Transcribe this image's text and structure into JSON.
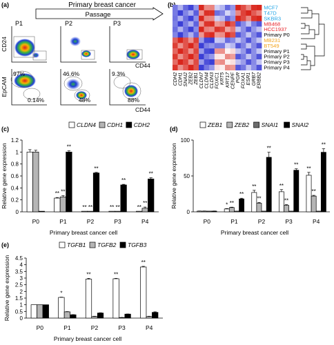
{
  "panel_a": {
    "label": "(a)",
    "title": "Primary breast cancer",
    "arrow_label": "Passage",
    "plot_titles": [
      "P1",
      "P2",
      "P3"
    ],
    "y_labels": [
      "CD24",
      "EpCAM"
    ],
    "x_label": "CD44",
    "row2_percent_upper": [
      "97%",
      "46.6%",
      "9.3%"
    ],
    "row2_percent_lower": [
      "0.14%",
      "48%",
      "88%"
    ]
  },
  "panel_b": {
    "label": "(b)",
    "rows": [
      "MCF7",
      "T47D",
      "SKBR3",
      "MB468",
      "HCC1937",
      "Primary P0",
      "MB231",
      "BT549",
      "Primary P1",
      "Primary P2",
      "Primary P3",
      "Primary P4"
    ],
    "row_colors": [
      "#1ea3e6",
      "#1ea3e6",
      "#1ea3e6",
      "#e8242a",
      "#e8242a",
      "#000000",
      "#f2a31c",
      "#f2a31c",
      "#000000",
      "#000000",
      "#000000",
      "#000000"
    ],
    "columns": [
      "CDH2",
      "CDH1",
      "SNAI2",
      "ZEB2",
      "ZEB1",
      "CLDN7",
      "CLDN4",
      "CLDN3",
      "FOXC1",
      "KRT5",
      "KRT17",
      "CENPF",
      "PGR",
      "FOXA1",
      "ESR1",
      "GRB7",
      "ERBB2"
    ],
    "colors": {
      "high": "#d9261c",
      "mid": "#ffffff",
      "low": "#3b3fd6"
    }
  },
  "chart_data": [
    {
      "id": "c",
      "type": "bar",
      "label": "(c)",
      "categories": [
        "P0",
        "P1",
        "P2",
        "P3",
        "P4"
      ],
      "series": [
        {
          "name": "CLDN4",
          "values": [
            1.0,
            0.23,
            0.01,
            0.01,
            0.01
          ],
          "errors": [
            0.04,
            0.01,
            0.0,
            0.0,
            0.0
          ],
          "color": "#ffffff",
          "sig": [
            "",
            "**",
            "**",
            "**",
            "**"
          ]
        },
        {
          "name": "CDH1",
          "values": [
            1.0,
            0.25,
            0.01,
            0.01,
            0.06
          ],
          "errors": [
            0.03,
            0.02,
            0.0,
            0.0,
            0.02
          ],
          "color": "#b5b5b5",
          "sig": [
            "",
            "**",
            "**",
            "**",
            "**"
          ]
        },
        {
          "name": "CDH2",
          "values": [
            0.01,
            1.0,
            0.65,
            0.45,
            0.55
          ],
          "errors": [
            0.0,
            0.02,
            0.01,
            0.01,
            0.02
          ],
          "color": "#000000",
          "sig": [
            "",
            "**",
            "**",
            "**",
            "**"
          ]
        }
      ],
      "xlabel": "Primary breast cancer cell",
      "ylabel": "Relative gene expression",
      "ylim": [
        0,
        1.2
      ],
      "yticks": [
        "0",
        "0.2",
        "0.4",
        "0.6",
        "0.8",
        "1",
        "1.2"
      ],
      "legend": "top"
    },
    {
      "id": "d",
      "type": "bar",
      "label": "(d)",
      "categories": [
        "P0",
        "P1",
        "P2",
        "P3",
        "P4"
      ],
      "series": [
        {
          "name": "ZEB1",
          "values": [
            1,
            4,
            27,
            28,
            51
          ],
          "errors": [
            0.2,
            0.5,
            3,
            3,
            4
          ],
          "color": "#ffffff",
          "sig": [
            "",
            "*",
            "**",
            "**",
            "**"
          ]
        },
        {
          "name": "ZEB2",
          "values": [
            1,
            6,
            12,
            9,
            22
          ],
          "errors": [
            0.2,
            0.5,
            1,
            1,
            1
          ],
          "color": "#b5b5b5",
          "sig": [
            "",
            "**",
            "**",
            "**",
            "**"
          ]
        },
        {
          "name": "SNAI1",
          "values": [
            1,
            1,
            1,
            1,
            1
          ],
          "errors": [
            0,
            0,
            0,
            0,
            0
          ],
          "color": "#6d6d6d",
          "sig": [
            "",
            "",
            "",
            "",
            ""
          ]
        },
        {
          "name": "SNAI2",
          "values": [
            1,
            18,
            76,
            58,
            83
          ],
          "errors": [
            0.2,
            1,
            7,
            2,
            5
          ],
          "color": "#000000",
          "sig": [
            "",
            "**",
            "**",
            "**",
            "**"
          ]
        }
      ],
      "xlabel": "Primary breast cancer cell",
      "ylabel": "Relative  gene expression",
      "ylim": [
        0,
        100
      ],
      "yticks": [
        "0",
        "50",
        "100"
      ],
      "legend": "top"
    },
    {
      "id": "e",
      "type": "bar",
      "label": "(e)",
      "categories": [
        "P0",
        "P1",
        "P2",
        "P3",
        "P4"
      ],
      "series": [
        {
          "name": "TGFB1",
          "values": [
            1.0,
            1.55,
            2.92,
            2.95,
            3.83
          ],
          "errors": [
            0.0,
            0.02,
            0.06,
            0.03,
            0.05
          ],
          "color": "#ffffff",
          "sig": [
            "",
            "*",
            "**",
            "**",
            "**"
          ]
        },
        {
          "name": "TGFB2",
          "values": [
            1.0,
            0.47,
            0.12,
            0.04,
            0.12
          ],
          "errors": [
            0.0,
            0.02,
            0.02,
            0.01,
            0.02
          ],
          "color": "#b5b5b5",
          "sig": [
            "",
            "",
            "",
            "",
            ""
          ]
        },
        {
          "name": "TGFB3",
          "values": [
            1.0,
            0.25,
            0.38,
            0.3,
            0.43
          ],
          "errors": [
            0.0,
            0.01,
            0.02,
            0.01,
            0.04
          ],
          "color": "#000000",
          "sig": [
            "",
            "",
            "",
            "",
            ""
          ]
        }
      ],
      "xlabel": "Primary breast cancer cell",
      "ylabel": "Relative gene expression",
      "ylim": [
        0,
        4.5
      ],
      "yticks": [
        "0",
        "0.5",
        "1",
        "1.5",
        "2",
        "2.5",
        "3",
        "3.5",
        "4",
        "4.5"
      ],
      "legend": "top"
    }
  ]
}
